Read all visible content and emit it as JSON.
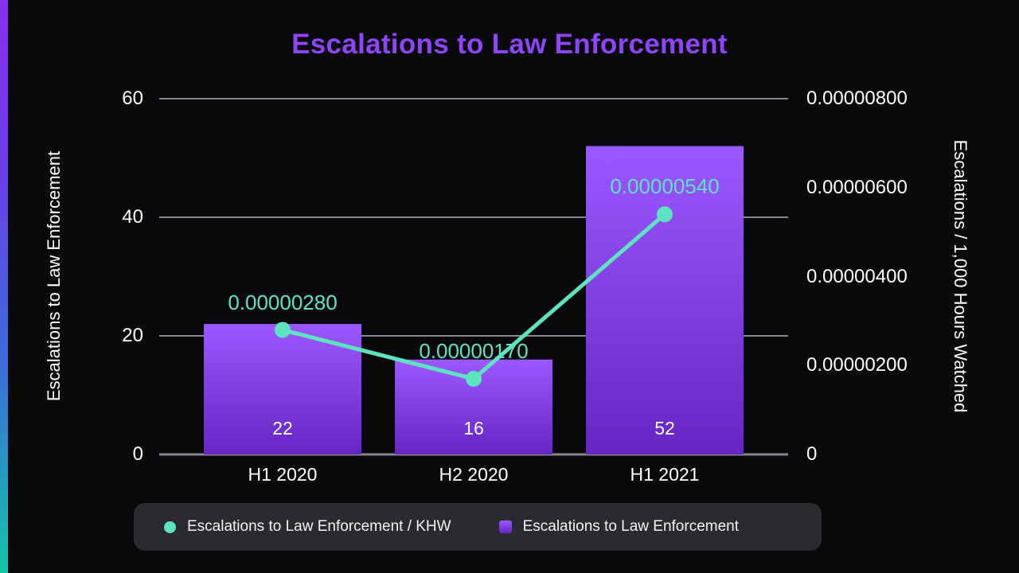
{
  "title": "Escalations to Law Enforcement",
  "colors": {
    "title": "#8d45f7",
    "line": "#5ee3c1",
    "bar_top": "#9b58ff",
    "bar_bottom": "#6526c4",
    "grid": "#86868c",
    "background": "#0a0a0c",
    "legend_background": "#2b2b2f"
  },
  "chart_data": {
    "type": "combo-bar-line",
    "title": "Escalations to Law Enforcement",
    "categories": [
      "H1 2020",
      "H2 2020",
      "H1 2021"
    ],
    "series": [
      {
        "name": "Escalations to Law Enforcement",
        "type": "bar",
        "axis": "left",
        "values": [
          22,
          16,
          52
        ],
        "value_labels": [
          "22",
          "16",
          "52"
        ]
      },
      {
        "name": "Escalations to Law Enforcement / KHW",
        "type": "line",
        "axis": "right",
        "values": [
          2.8e-06,
          1.7e-06,
          5.4e-06
        ],
        "value_labels": [
          "0.00000280",
          "0.00000170",
          "0.00000540"
        ]
      }
    ],
    "left_axis": {
      "label": "Escalations to Law Enforcement",
      "min": 0,
      "max": 60,
      "ticks": [
        "0",
        "20",
        "40",
        "60"
      ]
    },
    "right_axis": {
      "label": "Escalations / 1,000 Hours Watched",
      "min": 0,
      "max": 8e-06,
      "ticks": [
        "0",
        "0.00000200",
        "0.00000400",
        "0.00000600",
        "0.00000800"
      ]
    },
    "grid": true,
    "legend_position": "bottom"
  }
}
